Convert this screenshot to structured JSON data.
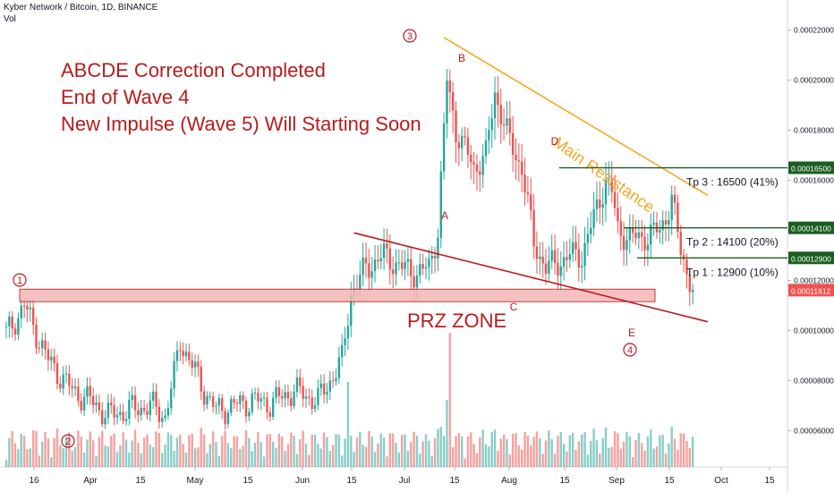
{
  "header": {
    "symbol": "Kyber Network / Bitcoin, 1D, BINANCE",
    "volume_label": "Vol"
  },
  "annotations": {
    "headline": [
      "ABCDE Correction Completed",
      "End of Wave 4",
      "New Impulse (Wave 5) Will Starting Soon"
    ],
    "prz_zone": "PRZ ZONE",
    "main_resistance": "Main Resistance",
    "wave_labels": [
      "1",
      "2",
      "3",
      "4"
    ],
    "point_labels": [
      "A",
      "B",
      "C",
      "D",
      "E"
    ],
    "targets": [
      "Tp 3 : 16500 (41%)",
      "Tp 2 : 14100 (20%)",
      "Tp 1 : 12900 (10%)"
    ]
  },
  "colors": {
    "up": "#26a69a",
    "down": "#ef5350",
    "annotation": "#b71c1c",
    "resistance": "#f5a623",
    "target": "#1b5e20",
    "zone_fill": "#f4b6b6"
  },
  "chart_data": {
    "type": "candlestick",
    "title": "Kyber Network / Bitcoin, 1D, BINANCE",
    "x_tick_labels": [
      "16",
      "Apr",
      "15",
      "May",
      "15",
      "Jun",
      "15",
      "Jul",
      "15",
      "Aug",
      "15",
      "Sep",
      "15",
      "Oct",
      "15"
    ],
    "y_tick_labels": [
      "0.00006000",
      "0.00008000",
      "0.00010000",
      "0.00012000",
      "0.00014000",
      "0.00016000",
      "0.00018000",
      "0.00020000",
      "0.00022000"
    ],
    "ylim": [
      4.55e-05,
      0.000232
    ],
    "price_labels": [
      {
        "text": "0.00016500",
        "value": 0.000165
      },
      {
        "text": "0.00014100",
        "value": 0.000141
      },
      {
        "text": "0.00012900",
        "value": 0.000129
      },
      {
        "text": "0.00011612",
        "value": 0.00011612,
        "current": true
      }
    ],
    "series": [
      {
        "name": "close",
        "start": 9.85e-05,
        "waypoints": [
          [
            0,
            9.85e-05
          ],
          [
            6,
            0.00011
          ],
          [
            14,
            8.8e-05
          ],
          [
            22,
            7.6e-05
          ],
          [
            28,
            7.2e-05
          ],
          [
            34,
            6.6e-05
          ],
          [
            40,
            6.8e-05
          ],
          [
            48,
            7e-05
          ],
          [
            53,
            6.6e-05
          ],
          [
            56,
            8.2e-05
          ],
          [
            58,
            9.6e-05
          ],
          [
            62,
            8.6e-05
          ],
          [
            66,
            7.6e-05
          ],
          [
            70,
            6.8e-05
          ],
          [
            76,
            7e-05
          ],
          [
            82,
            7.2e-05
          ],
          [
            88,
            7.1e-05
          ],
          [
            96,
            7.6e-05
          ],
          [
            104,
            7.2e-05
          ],
          [
            108,
            8e-05
          ],
          [
            112,
            8.8e-05
          ],
          [
            115,
            0.000115
          ],
          [
            120,
            0.000125
          ],
          [
            126,
            0.00013
          ],
          [
            132,
            0.000125
          ],
          [
            137,
            0.000123
          ],
          [
            141,
            0.000125
          ],
          [
            144,
            0.00014
          ],
          [
            147,
            0.0002
          ],
          [
            150,
            0.00018
          ],
          [
            156,
            0.000165
          ],
          [
            160,
            0.00017
          ],
          [
            163,
            0.000195
          ],
          [
            168,
            0.000175
          ],
          [
            172,
            0.000165
          ],
          [
            176,
            0.000135
          ],
          [
            180,
            0.000125
          ],
          [
            184,
            0.000127
          ],
          [
            188,
            0.00013
          ],
          [
            192,
            0.00013
          ],
          [
            196,
            0.000145
          ],
          [
            200,
            0.00016
          ],
          [
            202,
            0.000155
          ],
          [
            204,
            0.00014
          ],
          [
            208,
            0.000137
          ],
          [
            212,
            0.000137
          ],
          [
            218,
            0.00014
          ],
          [
            222,
            0.000152
          ],
          [
            225,
            0.000132
          ],
          [
            229,
            0.0001161
          ]
        ]
      }
    ],
    "zone": {
      "low": 0.0001115,
      "high": 0.0001165,
      "label": "PRZ ZONE"
    },
    "lines": [
      {
        "name": "main resistance",
        "from": [
          146,
          0.000217
        ],
        "to": [
          234,
          0.000154
        ]
      },
      {
        "name": "support line",
        "from": [
          116,
          0.000139
        ],
        "to": [
          234,
          0.0001035
        ]
      }
    ]
  }
}
